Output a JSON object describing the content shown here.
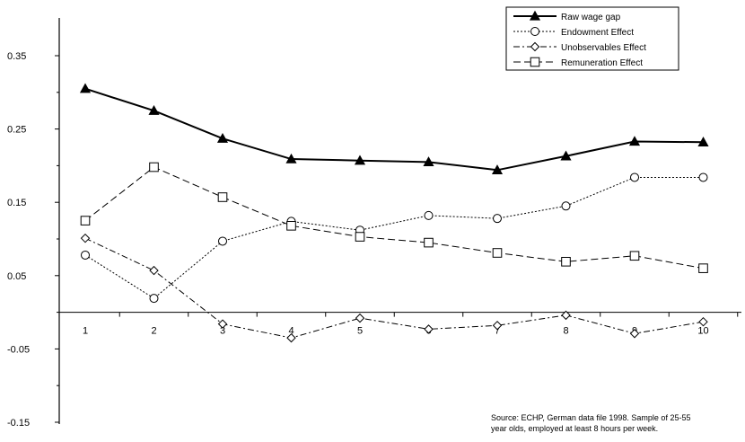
{
  "chart_data": {
    "type": "line",
    "x": [
      1,
      2,
      3,
      4,
      5,
      6,
      7,
      8,
      9,
      10
    ],
    "x_tick_labels": [
      "1",
      "2",
      "3",
      "4",
      "5",
      "6",
      "7",
      "8",
      "9",
      "10"
    ],
    "y_tick_labels": [
      "0.35",
      "0.25",
      "0.15",
      "0.05",
      "-0.05",
      "-0.15"
    ],
    "y_ticks": [
      0.35,
      0.25,
      0.15,
      0.05,
      -0.05,
      -0.15
    ],
    "ylim": [
      -0.15,
      0.4
    ],
    "grid": false,
    "legend_position": "top-right",
    "series": [
      {
        "name": "Raw wage gap",
        "marker": "filled-triangle",
        "dash": "solid",
        "values": [
          0.305,
          0.275,
          0.237,
          0.209,
          0.207,
          0.205,
          0.194,
          0.213,
          0.233,
          0.232
        ]
      },
      {
        "name": "Endowment Effect",
        "marker": "open-circle",
        "dash": "dotted",
        "values": [
          0.078,
          0.019,
          0.097,
          0.124,
          0.112,
          0.132,
          0.128,
          0.145,
          0.184,
          0.184
        ]
      },
      {
        "name": "Unobservables Effect",
        "marker": "open-diamond",
        "dash": "dash-dot",
        "values": [
          0.101,
          0.057,
          -0.016,
          -0.035,
          -0.008,
          -0.023,
          -0.018,
          -0.004,
          -0.029,
          -0.013
        ]
      },
      {
        "name": "Remuneration Effect",
        "marker": "open-square",
        "dash": "dashed",
        "values": [
          0.125,
          0.198,
          0.157,
          0.118,
          0.103,
          0.095,
          0.081,
          0.069,
          0.077,
          0.06
        ]
      }
    ],
    "source_note": [
      "Source: ECHP, German data file 1998. Sample of 25-55",
      "year olds, employed at least 8 hours per week."
    ]
  }
}
